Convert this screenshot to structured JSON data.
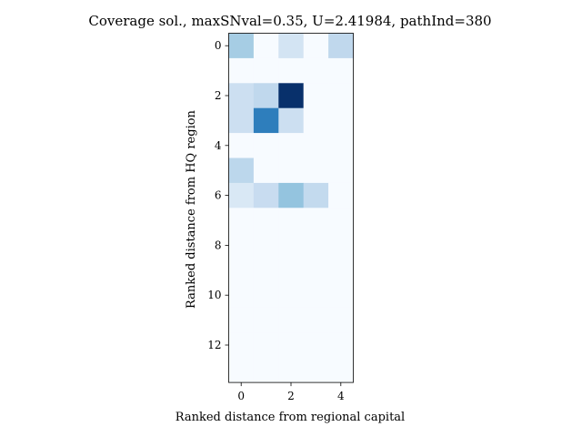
{
  "chart_data": {
    "type": "heatmap",
    "title": "Coverage sol., maxSNval=0.35, U=2.41984, pathInd=380",
    "xlabel": "Ranked distance from regional capital",
    "ylabel": "Ranked distance from HQ region",
    "colormap": "Blues",
    "n_rows": 14,
    "n_cols": 5,
    "x_ticks": [
      0,
      2,
      4
    ],
    "y_ticks": [
      0,
      2,
      4,
      6,
      8,
      10,
      12
    ],
    "values": [
      [
        0.35,
        0.0,
        0.18,
        0.0,
        0.27
      ],
      [
        0.0,
        0.0,
        0.0,
        0.0,
        0.0
      ],
      [
        0.22,
        0.27,
        1.0,
        0.0,
        0.0
      ],
      [
        0.22,
        0.7,
        0.22,
        0.0,
        0.0
      ],
      [
        0.0,
        0.0,
        0.0,
        0.0,
        0.0
      ],
      [
        0.28,
        0.0,
        0.0,
        0.0,
        0.0
      ],
      [
        0.15,
        0.24,
        0.4,
        0.26,
        0.0
      ],
      [
        0.0,
        0.0,
        0.0,
        0.0,
        0.0
      ],
      [
        0.0,
        0.0,
        0.0,
        0.0,
        0.0
      ],
      [
        0.0,
        0.0,
        0.0,
        0.0,
        0.0
      ],
      [
        0.0,
        0.0,
        0.0,
        0.0,
        0.0
      ],
      [
        0.0,
        0.0,
        0.0,
        0.0,
        0.0
      ],
      [
        0.0,
        0.0,
        0.0,
        0.0,
        0.0
      ],
      [
        0.0,
        0.0,
        0.0,
        0.0,
        0.0
      ]
    ]
  }
}
